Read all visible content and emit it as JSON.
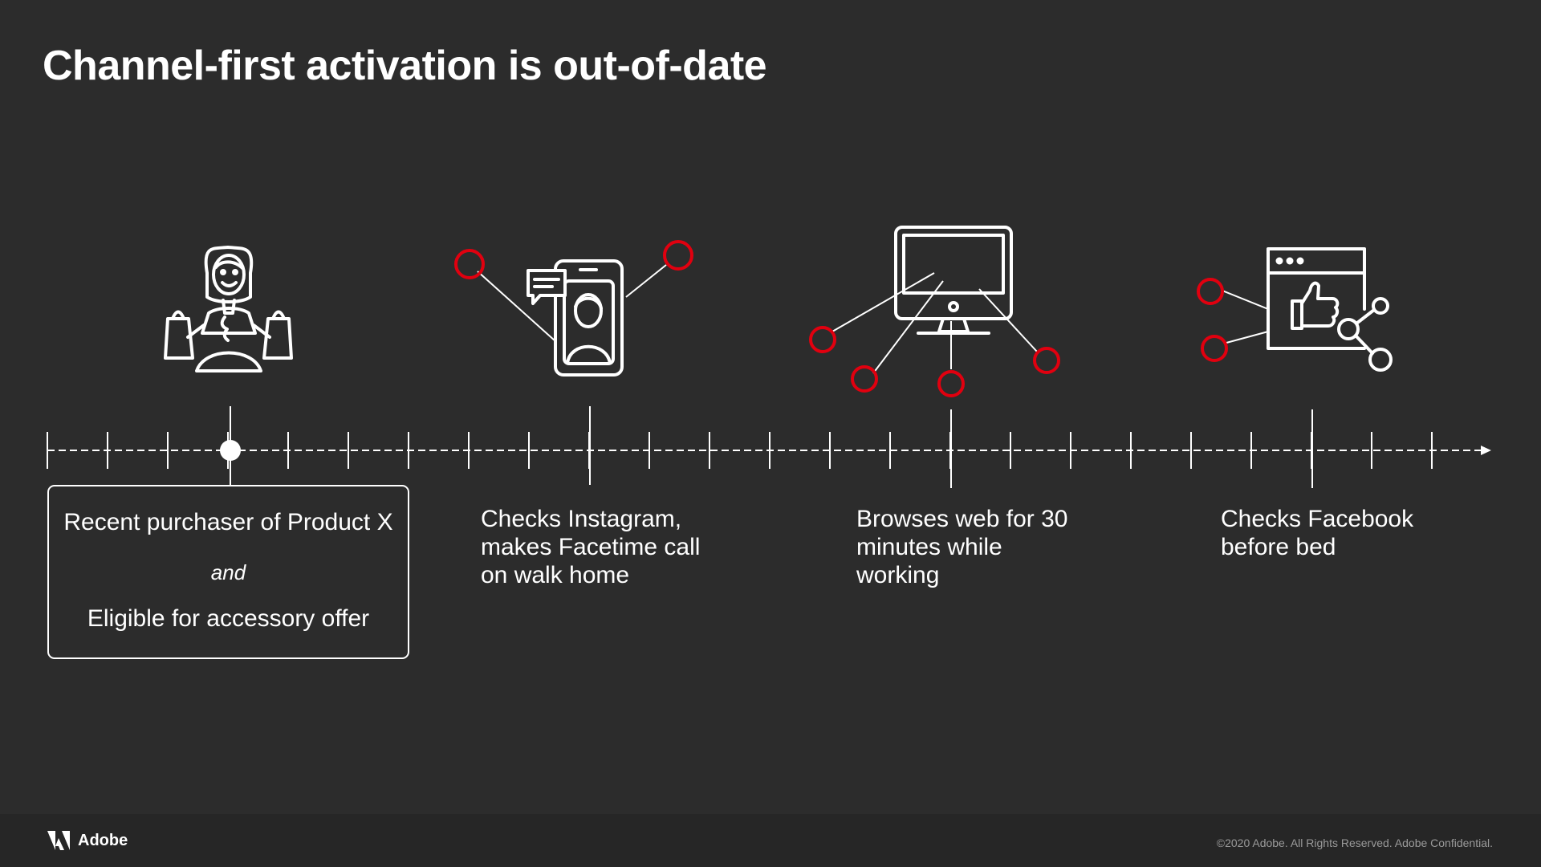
{
  "title": "Channel-first activation is out-of-date",
  "box": {
    "line1": "Recent purchaser of Product X",
    "line2": "and",
    "line3": "Eligible for accessory offer"
  },
  "events": [
    {
      "icon": "shopper-with-bags-icon",
      "label": "Recent purchaser of Product X / and / Eligible for accessory offer"
    },
    {
      "icon": "phone-video-call-icon",
      "label": "Checks Instagram,\nmakes Facetime call\non walk home"
    },
    {
      "icon": "desktop-monitor-icon",
      "label": "Browses web for 30\nminutes while\nworking"
    },
    {
      "icon": "browser-thumbs-up-share-icon",
      "label": "Checks Facebook\nbefore bed"
    }
  ],
  "footer": {
    "brand": "Adobe",
    "copyright": "©2020 Adobe. All Rights Reserved. Adobe Confidential."
  },
  "colors": {
    "background": "#2c2c2c",
    "footer": "#262626",
    "accent": "#e1000f",
    "line": "#ffffff"
  }
}
